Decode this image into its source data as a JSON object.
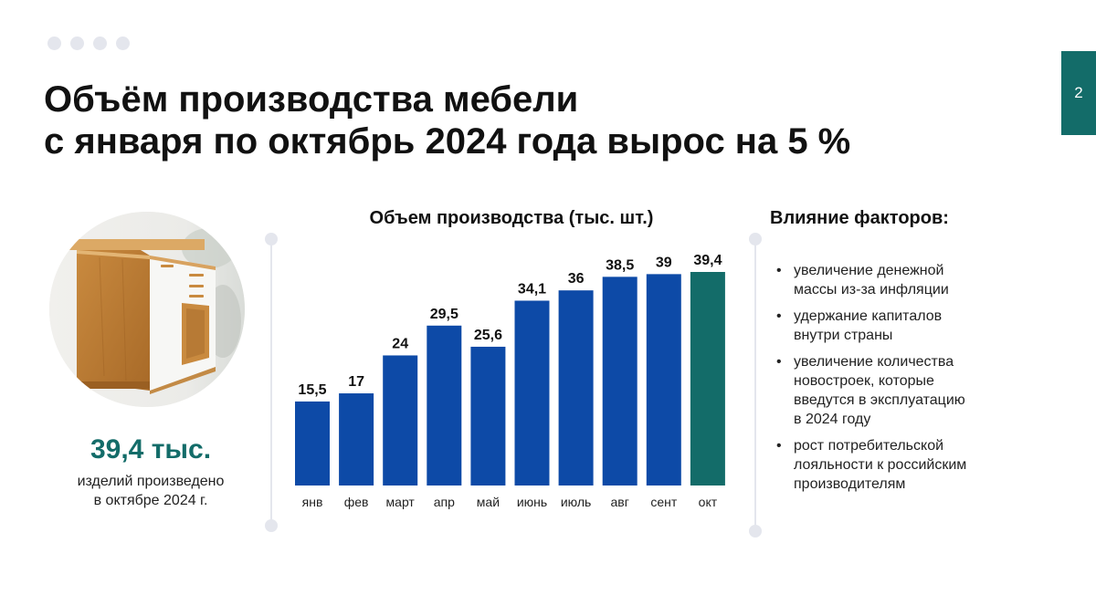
{
  "slide": {
    "title_lines": [
      "Объём производства мебели",
      "с января по октябрь 2024 года вырос на 5 %"
    ],
    "page_number": "2",
    "accent_color": "#136c69",
    "bar_color": "#0d4aa7",
    "highlight_bar_color": "#136c69"
  },
  "stat": {
    "value": "39,4 тыс.",
    "caption_lines": [
      "изделий произведено",
      "в октябре 2024 г."
    ]
  },
  "photo": {
    "icon": "furniture-cabinet-photo"
  },
  "factors": {
    "title": "Влияние факторов:",
    "items": [
      [
        "увеличение денежной",
        "массы  из-за инфляции"
      ],
      [
        "удержание капиталов",
        "внутри страны"
      ],
      [
        "увеличение количества",
        "новостроек, которые",
        "введутся в эксплуатацию",
        "в 2024 году"
      ],
      [
        "рост потребительской",
        "лояльности к российским",
        "производителям"
      ]
    ]
  },
  "chart_data": {
    "type": "bar",
    "title": "Объем производства (тыс. шт.)",
    "categories": [
      "янв",
      "фев",
      "март",
      "апр",
      "май",
      "июнь",
      "июль",
      "авг",
      "сент",
      "окт"
    ],
    "values": [
      15.5,
      17,
      24,
      29.5,
      25.6,
      34.1,
      36,
      38.5,
      39,
      39.4
    ],
    "value_labels": [
      "15,5",
      "17",
      "24",
      "29,5",
      "25,6",
      "34,1",
      "36",
      "38,5",
      "39",
      "39,4"
    ],
    "highlight_index": 9,
    "ylim": [
      0,
      39.4
    ],
    "grid": false,
    "legend": "none"
  }
}
